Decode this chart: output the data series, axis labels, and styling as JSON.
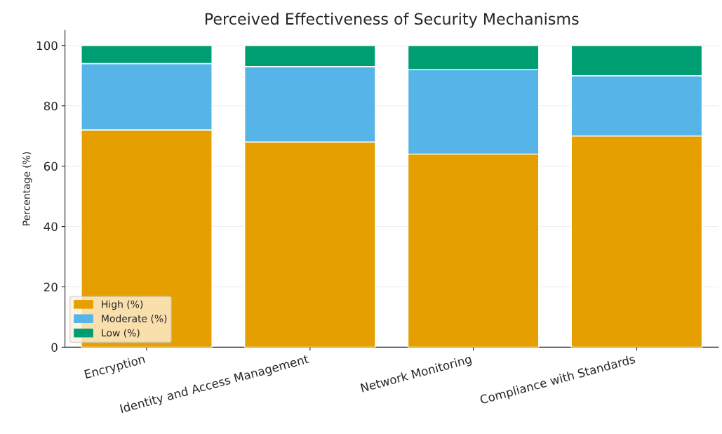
{
  "chart_data": {
    "type": "bar",
    "title": "Perceived Effectiveness of Security Mechanisms",
    "ylabel": "Percentage (%)",
    "categories": [
      "Encryption",
      "Identity and Access Management",
      "Network Monitoring",
      "Compliance with Standards"
    ],
    "stacked": true,
    "series": [
      {
        "name": "High (%)",
        "color": "#e69f00",
        "values": [
          72,
          68,
          64,
          70
        ]
      },
      {
        "name": "Moderate (%)",
        "color": "#56b4e9",
        "values": [
          22,
          25,
          28,
          20
        ]
      },
      {
        "name": "Low (%)",
        "color": "#009e73",
        "values": [
          6,
          7,
          8,
          10
        ]
      }
    ],
    "ylim": [
      0,
      105
    ],
    "yticks": [
      0,
      20,
      40,
      60,
      80,
      100
    ],
    "grid": "y",
    "legend": "bottom left"
  }
}
